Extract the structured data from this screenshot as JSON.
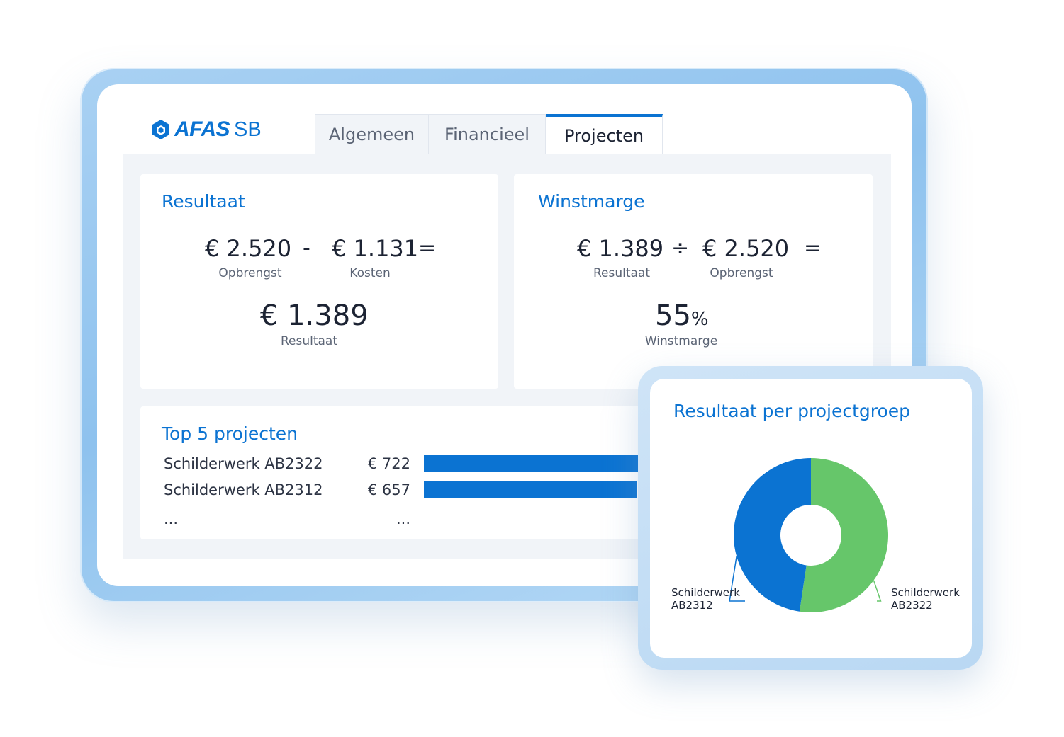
{
  "app": {
    "logo_text": "AFAS",
    "logo_sub": "SB"
  },
  "tabs": [
    {
      "label": "Algemeen",
      "active": false
    },
    {
      "label": "Financieel",
      "active": false
    },
    {
      "label": "Projecten",
      "active": true
    }
  ],
  "resultaat": {
    "title": "Resultaat",
    "opbrengst_value": "€ 2.520",
    "opbrengst_label": "Opbrengst",
    "minus": "-",
    "kosten_value": "€ 1.131",
    "kosten_label": "Kosten",
    "equals": "=",
    "result_value": "€ 1.389",
    "result_label": "Resultaat"
  },
  "winstmarge": {
    "title": "Winstmarge",
    "resultaat_value": "€ 1.389",
    "resultaat_label": "Resultaat",
    "divide": "÷",
    "opbrengst_value": "€ 2.520",
    "opbrengst_label": "Opbrengst",
    "equals": "=",
    "marge_value": "55",
    "marge_unit": "%",
    "marge_label": "Winstmarge"
  },
  "top_projecten": {
    "title": "Top 5 projecten",
    "rows": [
      {
        "name": "Schilderwerk AB2322",
        "value": "€ 722",
        "amount": 722
      },
      {
        "name": "Schilderwerk AB2312",
        "value": "€ 657",
        "amount": 657
      }
    ],
    "ellipsis_name": "...",
    "ellipsis_value": "..."
  },
  "chart_data": {
    "type": "pie",
    "title": "Resultaat per projectgroep",
    "categories": [
      "Schilderwerk AB2322",
      "Schilderwerk AB2312"
    ],
    "values": [
      722,
      657
    ],
    "colors": [
      "#66c66a",
      "#0b73d2"
    ],
    "label_lines": {
      "left": [
        "Schilderwerk",
        "AB2312"
      ],
      "right": [
        "Schilderwerk",
        "AB2322"
      ]
    }
  },
  "colors": {
    "accent": "#0b73d2",
    "green": "#66c66a"
  }
}
